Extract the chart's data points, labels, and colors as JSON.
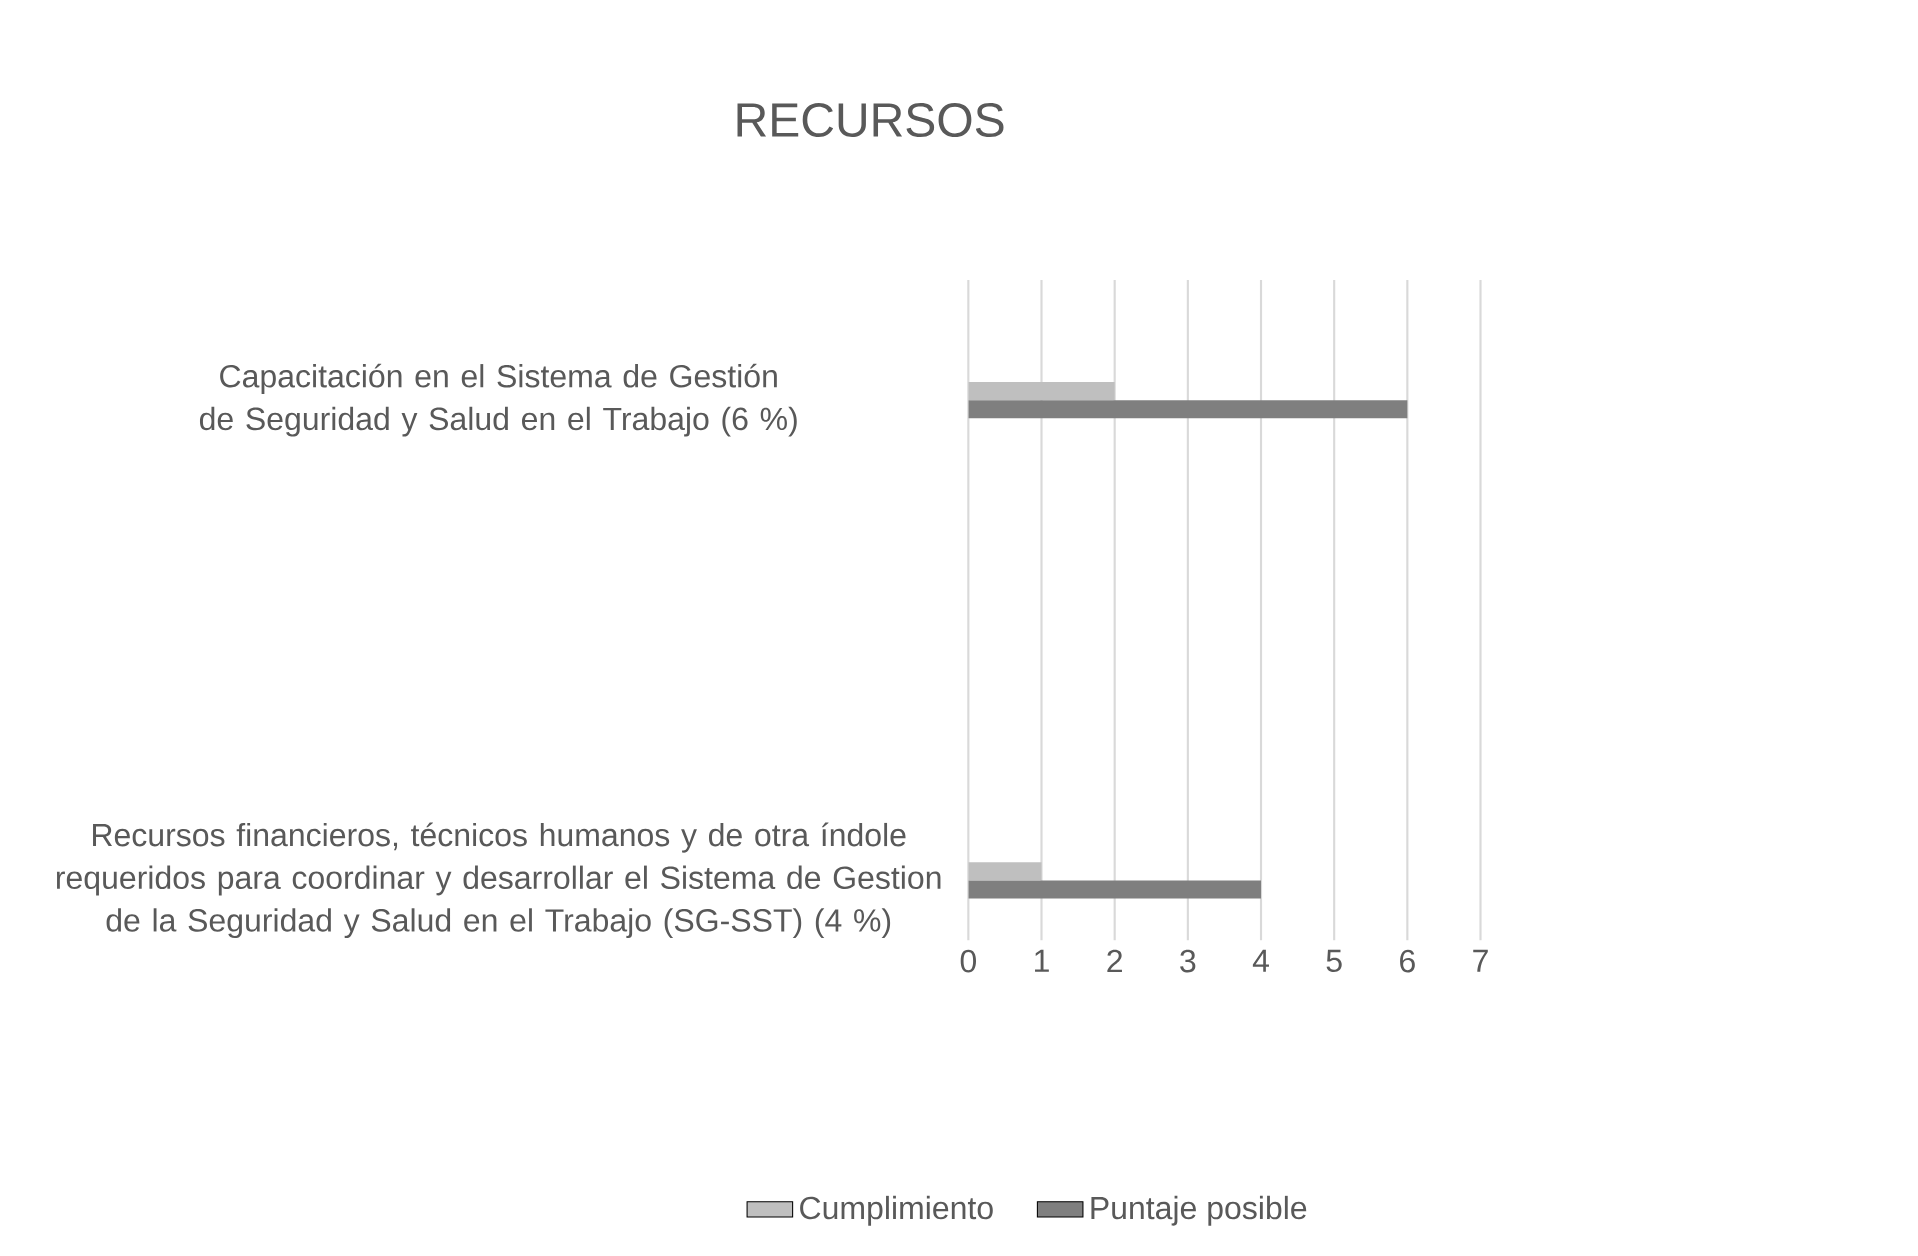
{
  "chart_data": {
    "type": "bar",
    "orientation": "horizontal",
    "title": "RECURSOS",
    "categories": [
      "Capacitación en el Sistema de Gestión de Seguridad y Salud en el Trabajo (6 %)",
      "Recursos financieros, técnicos humanos y de otra índole requeridos para coordinar y desarrollar el Sistema de Gestion de la Seguridad y Salud en el Trabajo (SG-SST) (4 %)"
    ],
    "series": [
      {
        "name": "Cumplimiento",
        "color": "#bfbfbf",
        "values": [
          2,
          1
        ]
      },
      {
        "name": "Puntaje posible",
        "color": "#7f7f7f",
        "values": [
          6,
          4
        ]
      }
    ],
    "xlim": [
      0,
      7
    ],
    "xticks": [
      0,
      1,
      2,
      3,
      4,
      5,
      6,
      7
    ],
    "grid": "x",
    "legend": "bottom"
  }
}
